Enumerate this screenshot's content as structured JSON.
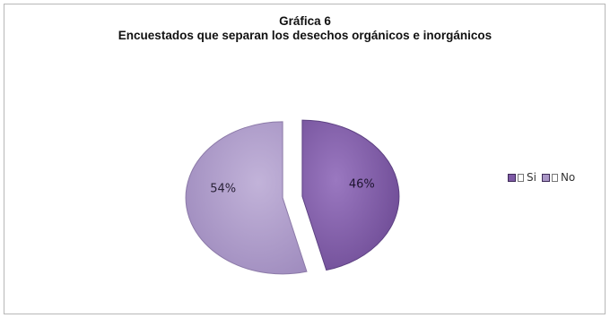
{
  "chart_data": {
    "type": "pie",
    "title": "Gráfica 6",
    "subtitle": "Encuestados que separan los desechos orgánicos e inorgánicos",
    "categories": [
      "Si",
      "No"
    ],
    "values": [
      46,
      54
    ],
    "data_labels": [
      "46%",
      "54%"
    ],
    "colors": [
      "#7e5aa6",
      "#a996c6"
    ],
    "legend_placement": "right",
    "exploded": true
  }
}
